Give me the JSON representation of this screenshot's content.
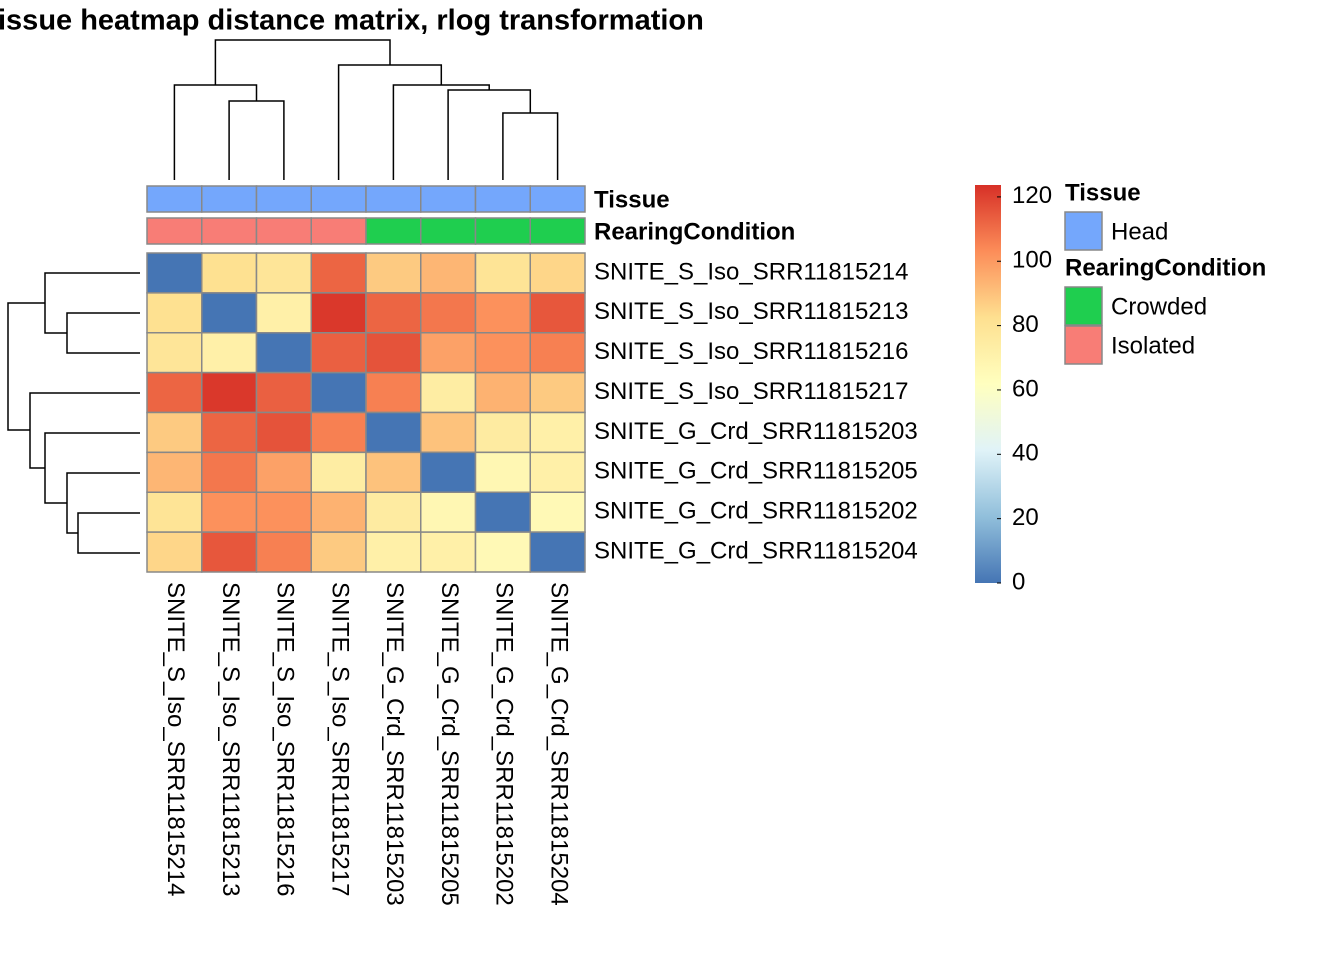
{
  "chart_data": {
    "type": "heatmap",
    "title": "issue heatmap distance matrix, rlog transformation",
    "rows": [
      "SNITE_S_Iso_SRR11815214",
      "SNITE_S_Iso_SRR11815213",
      "SNITE_S_Iso_SRR11815216",
      "SNITE_S_Iso_SRR11815217",
      "SNITE_G_Crd_SRR11815203",
      "SNITE_G_Crd_SRR11815205",
      "SNITE_G_Crd_SRR11815202",
      "SNITE_G_Crd_SRR11815204"
    ],
    "columns": [
      "SNITE_S_Iso_SRR11815214",
      "SNITE_S_Iso_SRR11815213",
      "SNITE_S_Iso_SRR11815216",
      "SNITE_S_Iso_SRR11815217",
      "SNITE_G_Crd_SRR11815203",
      "SNITE_G_Crd_SRR11815205",
      "SNITE_G_Crd_SRR11815202",
      "SNITE_G_Crd_SRR11815204"
    ],
    "values": [
      [
        0,
        82,
        79,
        112,
        88,
        93,
        80,
        85
      ],
      [
        82,
        0,
        72,
        122,
        112,
        108,
        102,
        115
      ],
      [
        79,
        72,
        0,
        113,
        116,
        98,
        102,
        106
      ],
      [
        112,
        122,
        113,
        0,
        106,
        74,
        94,
        88
      ],
      [
        88,
        112,
        116,
        106,
        0,
        90,
        75,
        72
      ],
      [
        93,
        108,
        98,
        74,
        90,
        0,
        67,
        72
      ],
      [
        80,
        102,
        102,
        94,
        75,
        67,
        0,
        66
      ],
      [
        85,
        115,
        106,
        88,
        72,
        72,
        66,
        0
      ]
    ],
    "zlim": [
      0,
      123.7
    ],
    "zticks": [
      0,
      20,
      40,
      60,
      80,
      100,
      120
    ],
    "colors": [
      "#4575b4",
      "#91bfdb",
      "#e0f3f8",
      "#ffffbf",
      "#fee090",
      "#fc8d59",
      "#d73027"
    ],
    "annotations": [
      {
        "name": "Tissue",
        "levels": [
          "Head"
        ],
        "colors": [
          "#74a7fc"
        ],
        "values": [
          "Head",
          "Head",
          "Head",
          "Head",
          "Head",
          "Head",
          "Head",
          "Head"
        ]
      },
      {
        "name": "RearingCondition",
        "levels": [
          "Crowded",
          "Isolated"
        ],
        "colors": [
          "#1fce4f",
          "#f87d76"
        ],
        "values": [
          "Isolated",
          "Isolated",
          "Isolated",
          "Isolated",
          "Crowded",
          "Crowded",
          "Crowded",
          "Crowded"
        ]
      }
    ]
  }
}
